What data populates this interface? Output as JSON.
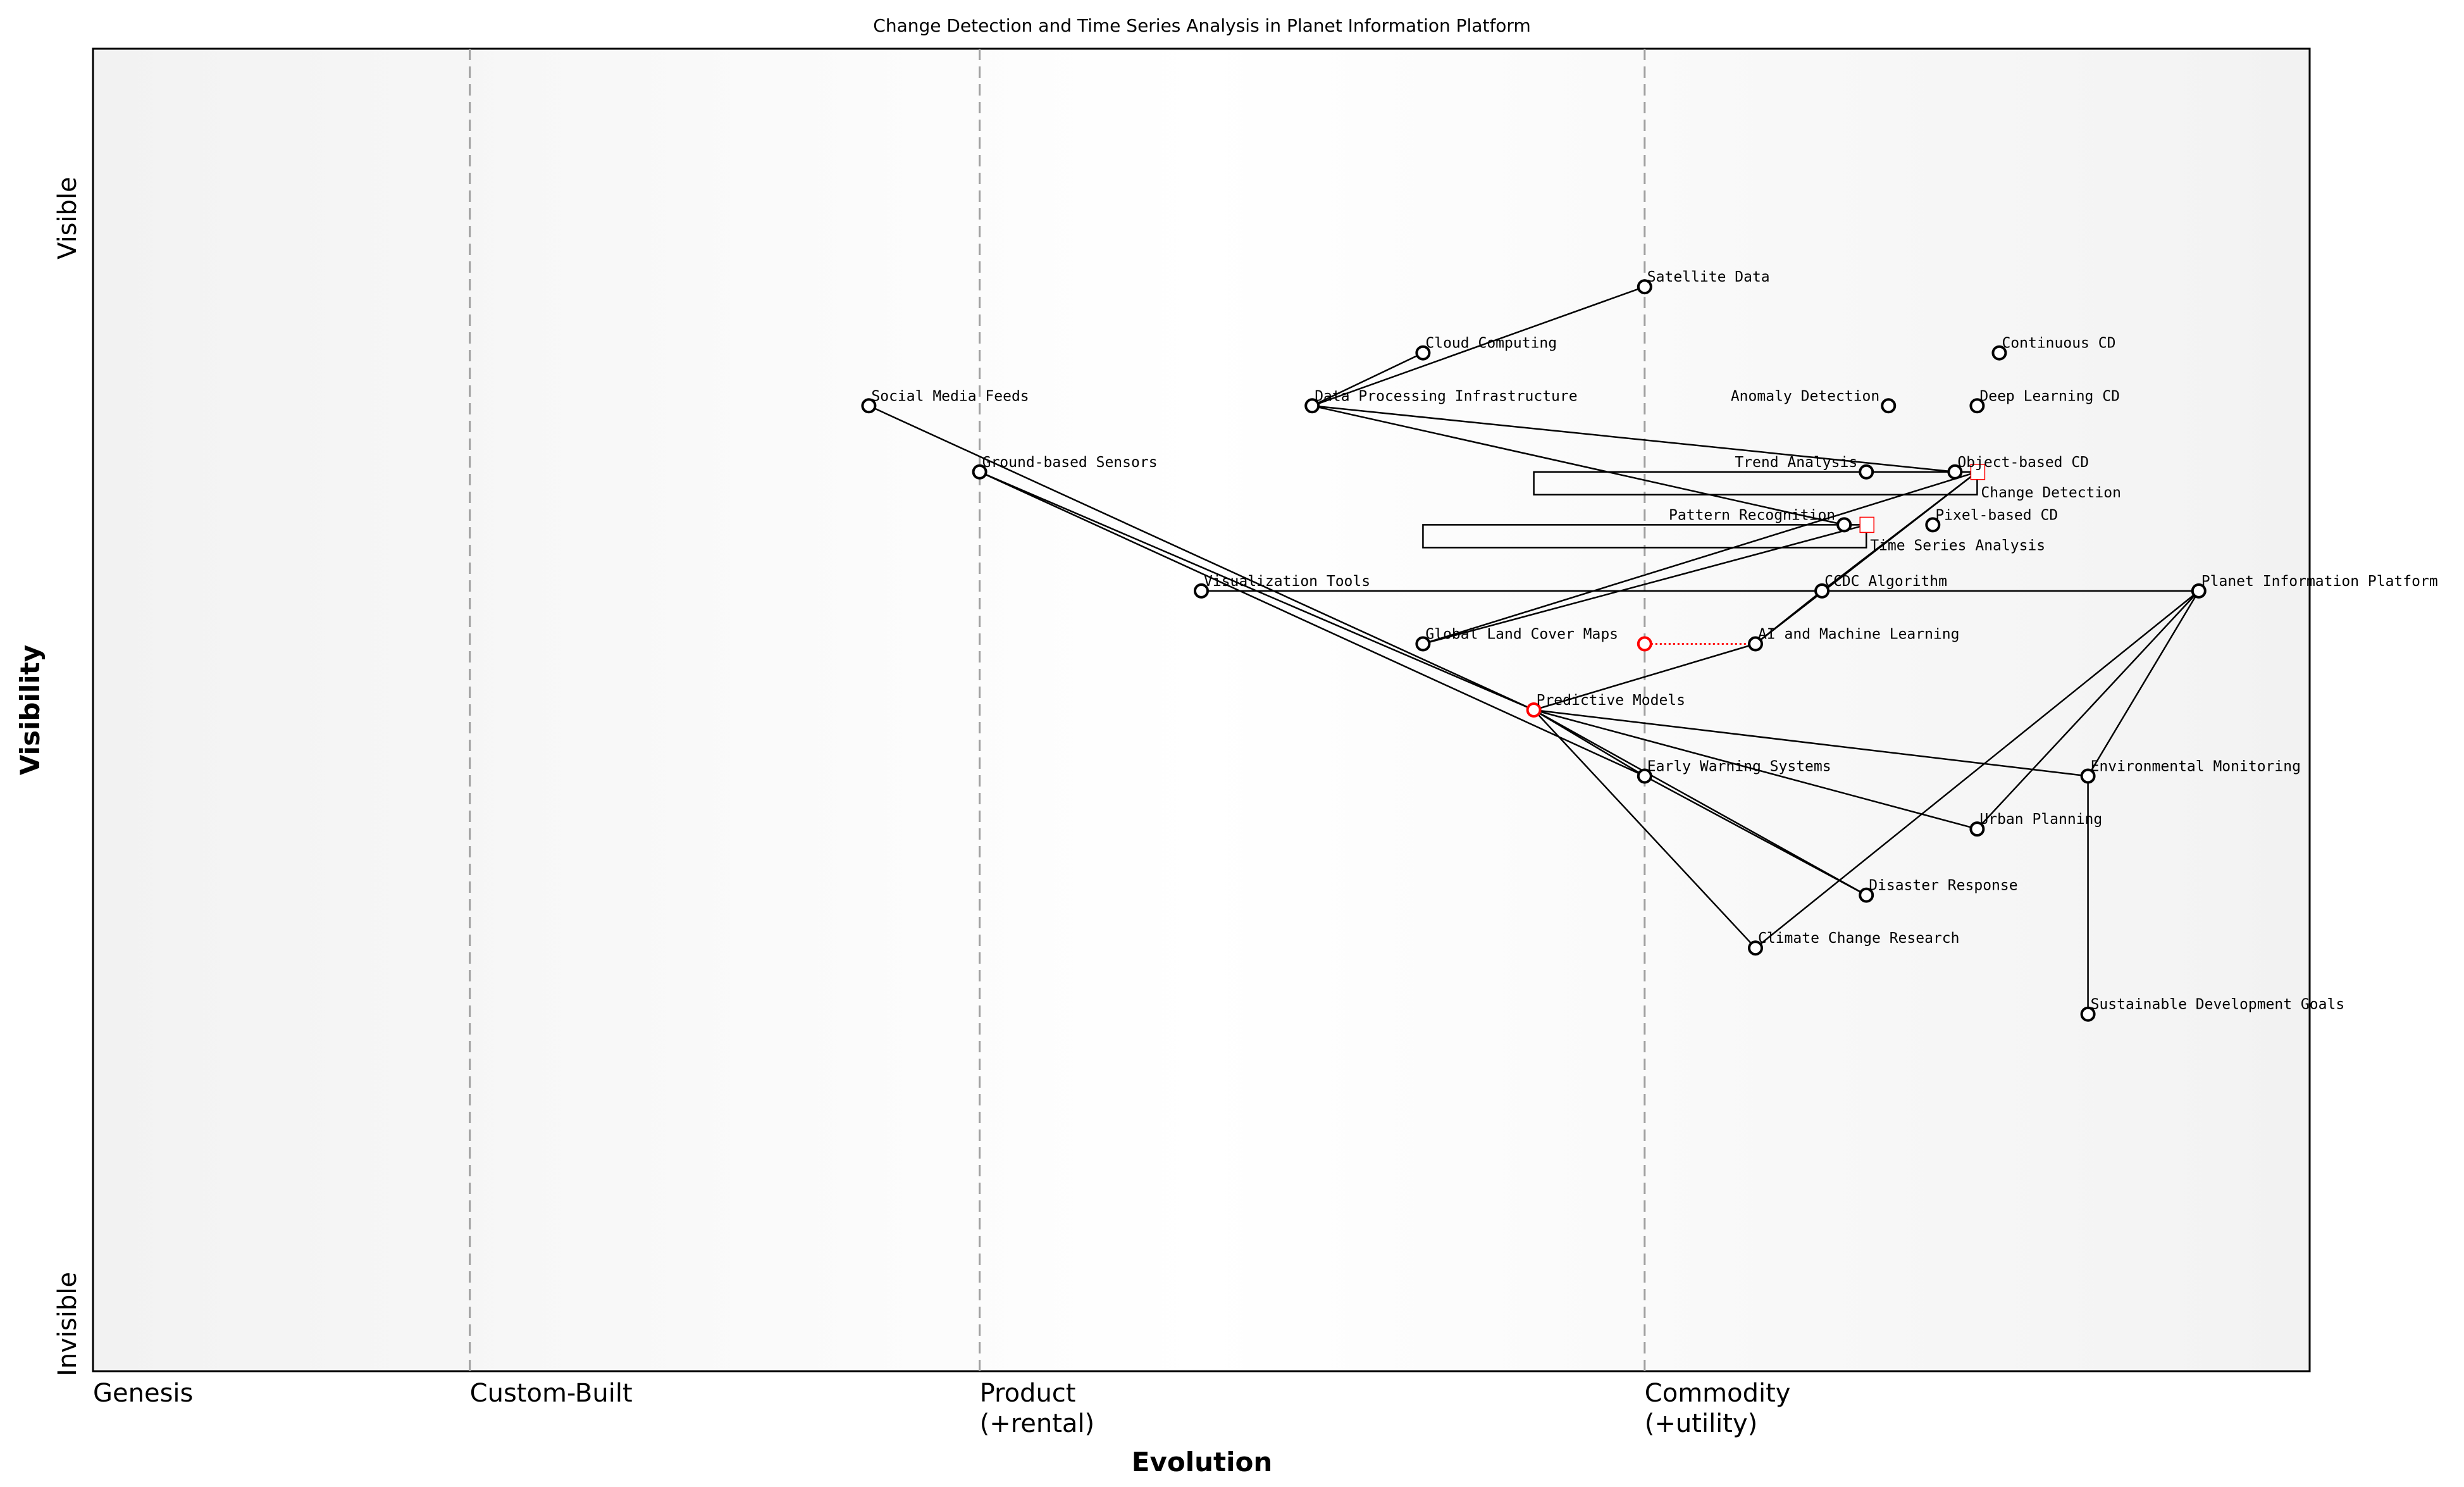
{
  "chart_data": {
    "type": "wardley-map",
    "title": "Change Detection and Time Series Analysis in Planet Information Platform",
    "xlabel": "Evolution",
    "ylabel": "Visibility",
    "y_ticks": [
      "Visible",
      "Invisible"
    ],
    "x_stages": [
      {
        "label": "Genesis",
        "sub": "",
        "at": 0.0
      },
      {
        "label": "Custom-Built",
        "sub": "",
        "at": 0.17
      },
      {
        "label": "Product",
        "sub": "(+rental)",
        "at": 0.4
      },
      {
        "label": "Commodity",
        "sub": "(+utility)",
        "at": 0.7
      }
    ],
    "xlim": [
      0,
      1
    ],
    "ylim": [
      0,
      1
    ],
    "colors": {
      "node": "#000000",
      "evolve": "#ff0000",
      "stage_line": "#a0a0a0",
      "bg_edge": "#f3f3f3",
      "bg_mid": "#ffffff"
    },
    "components": [
      {
        "name": "Satellite Data",
        "evolution": 0.7,
        "visibility": 0.82
      },
      {
        "name": "Cloud Computing",
        "evolution": 0.6,
        "visibility": 0.77
      },
      {
        "name": "Data Processing Infrastructure",
        "evolution": 0.55,
        "visibility": 0.73
      },
      {
        "name": "Social Media Feeds",
        "evolution": 0.35,
        "visibility": 0.73
      },
      {
        "name": "Ground-based Sensors",
        "evolution": 0.4,
        "visibility": 0.68
      },
      {
        "name": "Visualization Tools",
        "evolution": 0.5,
        "visibility": 0.59
      },
      {
        "name": "Global Land Cover Maps",
        "evolution": 0.6,
        "visibility": 0.55
      },
      {
        "name": "AI and Machine Learning",
        "evolution": 0.75,
        "visibility": 0.55
      },
      {
        "name": "Predictive Models",
        "evolution": 0.65,
        "visibility": 0.5,
        "color": "red"
      },
      {
        "name": "Early Warning Systems",
        "evolution": 0.7,
        "visibility": 0.45
      },
      {
        "name": "Environmental Monitoring",
        "evolution": 0.9,
        "visibility": 0.45
      },
      {
        "name": "Urban Planning",
        "evolution": 0.85,
        "visibility": 0.41
      },
      {
        "name": "Disaster Response",
        "evolution": 0.8,
        "visibility": 0.36
      },
      {
        "name": "Climate Change Research",
        "evolution": 0.75,
        "visibility": 0.32
      },
      {
        "name": "Sustainable Development Goals",
        "evolution": 0.9,
        "visibility": 0.27
      },
      {
        "name": "Planet Information Platform",
        "evolution": 0.95,
        "visibility": 0.59
      },
      {
        "name": "CCDC Algorithm",
        "evolution": 0.78,
        "visibility": 0.59
      },
      {
        "name": "Trend Analysis",
        "evolution": 0.8,
        "visibility": 0.68
      },
      {
        "name": "Object-based CD",
        "evolution": 0.84,
        "visibility": 0.68
      },
      {
        "name": "Anomaly Detection",
        "evolution": 0.81,
        "visibility": 0.73
      },
      {
        "name": "Deep Learning CD",
        "evolution": 0.85,
        "visibility": 0.73
      },
      {
        "name": "Continuous CD",
        "evolution": 0.86,
        "visibility": 0.77
      },
      {
        "name": "Pattern Recognition",
        "evolution": 0.79,
        "visibility": 0.64
      },
      {
        "name": "Pixel-based CD",
        "evolution": 0.83,
        "visibility": 0.64
      }
    ],
    "pipelines": [
      {
        "name": "Change Detection",
        "evolution": 0.85,
        "visibility": 0.68,
        "start": 0.65,
        "end": 0.85
      },
      {
        "name": "Time Series Analysis",
        "evolution": 0.8,
        "visibility": 0.64,
        "start": 0.6,
        "end": 0.8
      }
    ],
    "evolve": [
      {
        "name": "AI and Machine Learning",
        "from": 0.7,
        "to": 0.75,
        "visibility": 0.55
      }
    ],
    "links": [
      [
        "Satellite Data",
        "Data Processing Infrastructure"
      ],
      [
        "Cloud Computing",
        "Data Processing Infrastructure"
      ],
      [
        "Data Processing Infrastructure",
        "Object-based CD"
      ],
      [
        "Data Processing Infrastructure",
        "Pattern Recognition"
      ],
      [
        "Social Media Feeds",
        "Predictive Models"
      ],
      [
        "Ground-based Sensors",
        "Predictive Models"
      ],
      [
        "Ground-based Sensors",
        "Early Warning Systems"
      ],
      [
        "Visualization Tools",
        "Planet Information Platform"
      ],
      [
        "Global Land Cover Maps",
        "Change Detection"
      ],
      [
        "Global Land Cover Maps",
        "Time Series Analysis"
      ],
      [
        "AI and Machine Learning",
        "CCDC Algorithm"
      ],
      [
        "AI and Machine Learning",
        "Change Detection"
      ],
      [
        "CCDC Algorithm",
        "Change Detection"
      ],
      [
        "Predictive Models",
        "AI and Machine Learning"
      ],
      [
        "Predictive Models",
        "Early Warning Systems"
      ],
      [
        "Predictive Models",
        "Environmental Monitoring"
      ],
      [
        "Predictive Models",
        "Urban Planning"
      ],
      [
        "Predictive Models",
        "Disaster Response"
      ],
      [
        "Predictive Models",
        "Climate Change Research"
      ],
      [
        "Early Warning Systems",
        "Disaster Response"
      ],
      [
        "Planet Information Platform",
        "Environmental Monitoring"
      ],
      [
        "Planet Information Platform",
        "Urban Planning"
      ],
      [
        "Planet Information Platform",
        "Climate Change Research"
      ],
      [
        "Environmental Monitoring",
        "Sustainable Development Goals"
      ]
    ]
  }
}
